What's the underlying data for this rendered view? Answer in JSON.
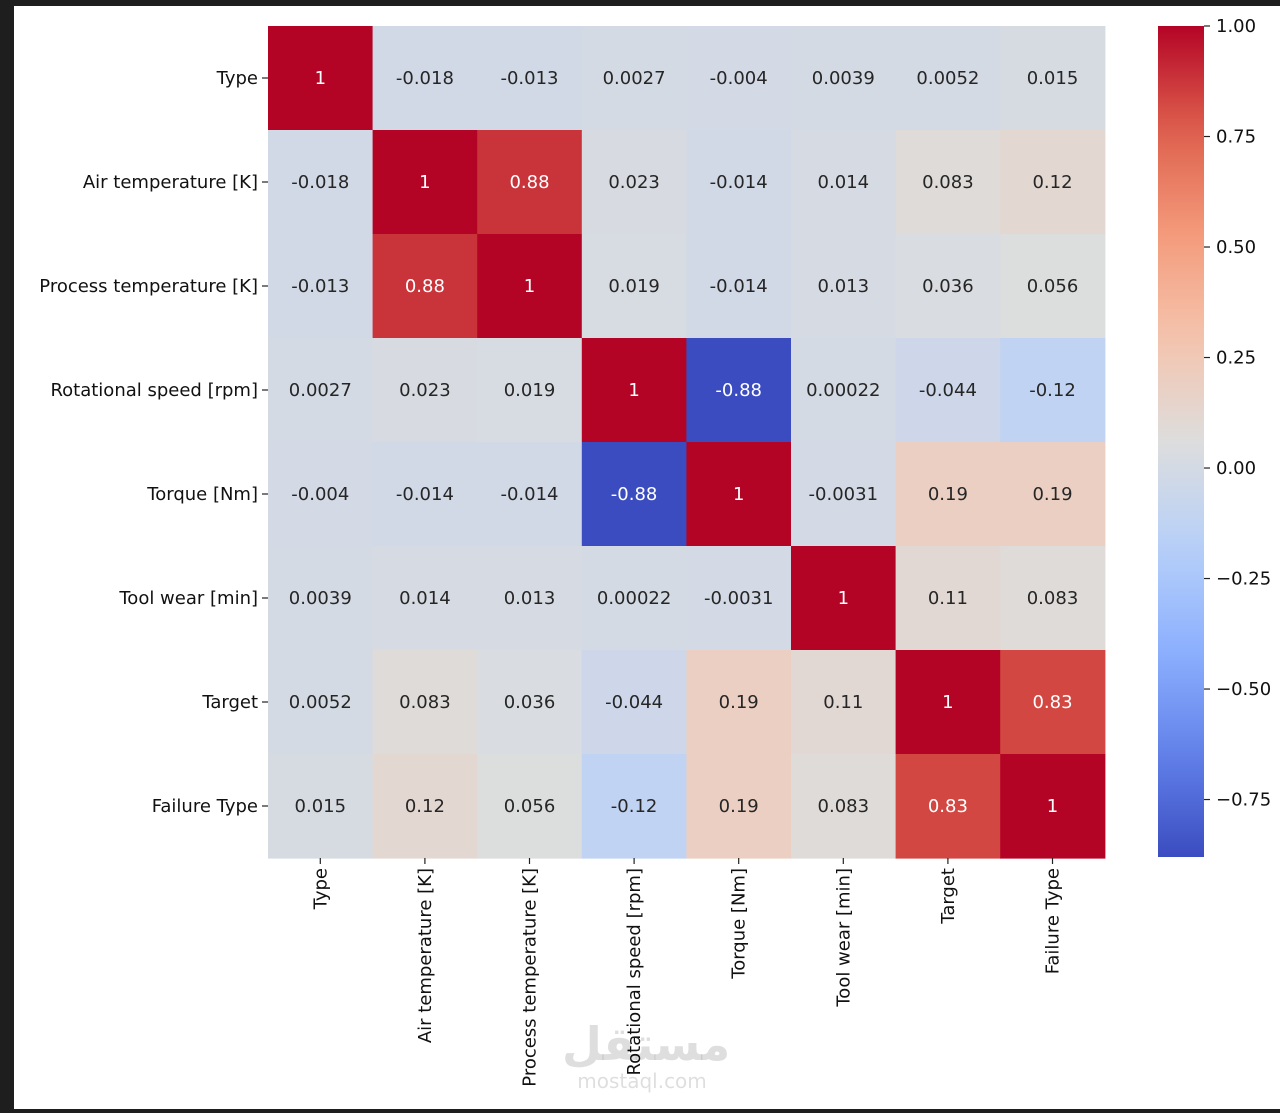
{
  "chart_data": {
    "type": "heatmap",
    "title": "",
    "colormap": "coolwarm",
    "vmin": -0.88,
    "vmax": 1.0,
    "labels": [
      "Type",
      "Air temperature [K]",
      "Process temperature [K]",
      "Rotational speed [rpm]",
      "Torque [Nm]",
      "Tool wear [min]",
      "Target",
      "Failure Type"
    ],
    "matrix": [
      [
        "1",
        "-0.018",
        "-0.013",
        "0.0027",
        "-0.004",
        "0.0039",
        "0.0052",
        "0.015"
      ],
      [
        "-0.018",
        "1",
        "0.88",
        "0.023",
        "-0.014",
        "0.014",
        "0.083",
        "0.12"
      ],
      [
        "-0.013",
        "0.88",
        "1",
        "0.019",
        "-0.014",
        "0.013",
        "0.036",
        "0.056"
      ],
      [
        "0.0027",
        "0.023",
        "0.019",
        "1",
        "-0.88",
        "0.00022",
        "-0.044",
        "-0.12"
      ],
      [
        "-0.004",
        "-0.014",
        "-0.014",
        "-0.88",
        "1",
        "-0.0031",
        "0.19",
        "0.19"
      ],
      [
        "0.0039",
        "0.014",
        "0.013",
        "0.00022",
        "-0.0031",
        "1",
        "0.11",
        "0.083"
      ],
      [
        "0.0052",
        "0.083",
        "0.036",
        "-0.044",
        "0.19",
        "0.11",
        "1",
        "0.83"
      ],
      [
        "0.015",
        "0.12",
        "0.056",
        "-0.12",
        "0.19",
        "0.083",
        "0.83",
        "1"
      ]
    ],
    "colorbar": {
      "ticks": [
        1.0,
        0.75,
        0.5,
        0.25,
        0.0,
        -0.25,
        -0.5,
        -0.75
      ],
      "tick_labels": [
        "1.00",
        "0.75",
        "0.50",
        "0.25",
        "0.00",
        "−0.25",
        "−0.50",
        "−0.75"
      ]
    }
  },
  "watermark": {
    "logo": "مستقل",
    "site": "mostaql.com"
  }
}
